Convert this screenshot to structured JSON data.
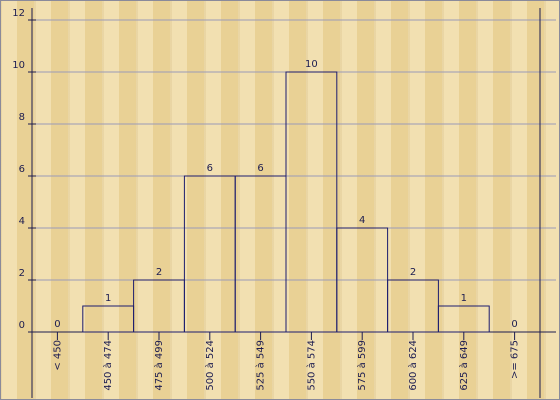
{
  "chart_data": {
    "type": "bar",
    "categories": [
      "< 450",
      "450 à 474",
      "475 à 499",
      "500 à 524",
      "525 à 549",
      "550 à 574",
      "575 à 599",
      "600 à 624",
      "625 à 649",
      ">= 675"
    ],
    "values": [
      0,
      1,
      2,
      6,
      6,
      10,
      4,
      2,
      1,
      0
    ],
    "color": "#1c1c6e",
    "ylim": [
      0,
      12
    ],
    "yticks": [
      0,
      2,
      4,
      6,
      8,
      10,
      12
    ],
    "grid": true
  }
}
